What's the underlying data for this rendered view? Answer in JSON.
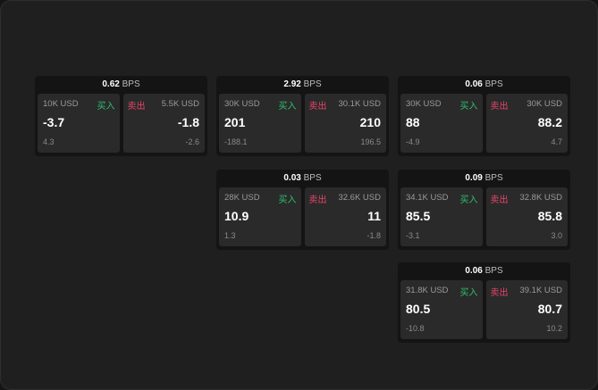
{
  "buy_label": "买入",
  "sell_label": "卖出",
  "unit": "BPS",
  "colors": {
    "buy": "#2fbf71",
    "sell": "#e8446a"
  },
  "cards": [
    {
      "spread": "0.62",
      "buy": {
        "amount": "10K USD",
        "price": "-3.7",
        "change": "4.3"
      },
      "sell": {
        "amount": "5.5K USD",
        "price": "-1.8",
        "change": "-2.6"
      }
    },
    {
      "spread": "2.92",
      "buy": {
        "amount": "30K USD",
        "price": "201",
        "change": "-188.1"
      },
      "sell": {
        "amount": "30.1K USD",
        "price": "210",
        "change": "196.5"
      }
    },
    {
      "spread": "0.06",
      "buy": {
        "amount": "30K USD",
        "price": "88",
        "change": "-4.9"
      },
      "sell": {
        "amount": "30K USD",
        "price": "88.2",
        "change": "4.7"
      }
    },
    {
      "spread": "0.03",
      "buy": {
        "amount": "28K USD",
        "price": "10.9",
        "change": "1.3"
      },
      "sell": {
        "amount": "32.6K USD",
        "price": "11",
        "change": "-1.8"
      }
    },
    {
      "spread": "0.09",
      "buy": {
        "amount": "34.1K USD",
        "price": "85.5",
        "change": "-3.1"
      },
      "sell": {
        "amount": "32.8K USD",
        "price": "85.8",
        "change": "3.0"
      }
    },
    {
      "spread": "0.06",
      "buy": {
        "amount": "31.8K USD",
        "price": "80.5",
        "change": "-10.8"
      },
      "sell": {
        "amount": "39.1K USD",
        "price": "80.7",
        "change": "10.2"
      }
    }
  ]
}
